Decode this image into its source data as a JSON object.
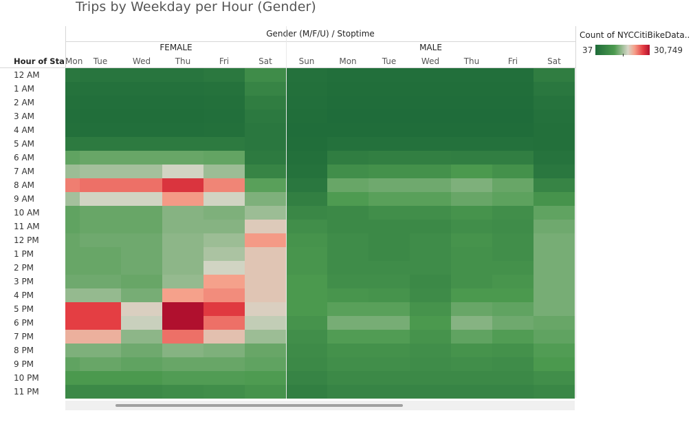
{
  "title": "Trips by Weekday per Hour (Gender)",
  "column_field_label": "Gender (M/F/U) / Stoptime",
  "row_header": "Hour of Sta..",
  "legend": {
    "title": "Count of NYCCitiBikeData..",
    "min": "37",
    "max": "30,749",
    "colors": [
      "#1e6b39",
      "#4c9a4f",
      "#d6d6c8",
      "#f5a08a",
      "#e43c42",
      "#b0102e"
    ]
  },
  "chart_data": {
    "type": "heatmap",
    "title": "Trips by Weekday per Hour (Gender)",
    "xlabel": "Gender (M/F/U) / Stoptime",
    "ylabel": "Hour of Sta..",
    "color_range": [
      37,
      30749
    ],
    "groups": [
      {
        "name": "FEMALE",
        "days": [
          "Mon",
          "Tue",
          "Wed",
          "Thu",
          "Fri",
          "Sat"
        ]
      },
      {
        "name": "MALE",
        "days": [
          "Sun",
          "Mon",
          "Tue",
          "Wed",
          "Thu",
          "Fri",
          "Sat"
        ]
      }
    ],
    "hours": [
      "12 AM",
      "1 AM",
      "2 AM",
      "3 AM",
      "4 AM",
      "5 AM",
      "6 AM",
      "7 AM",
      "8 AM",
      "9 AM",
      "10 AM",
      "11 AM",
      "12 PM",
      "1 PM",
      "2 PM",
      "3 PM",
      "4 PM",
      "5 PM",
      "6 PM",
      "7 PM",
      "8 PM",
      "9 PM",
      "10 PM",
      "11 PM"
    ],
    "values": [
      [
        1200,
        1000,
        1000,
        1000,
        1300,
        3300,
        600,
        400,
        400,
        400,
        400,
        400,
        1800
      ],
      [
        700,
        600,
        600,
        600,
        700,
        2500,
        500,
        300,
        300,
        300,
        300,
        300,
        1200
      ],
      [
        500,
        400,
        400,
        400,
        500,
        1800,
        400,
        200,
        200,
        200,
        200,
        200,
        800
      ],
      [
        400,
        300,
        300,
        300,
        400,
        1400,
        300,
        150,
        150,
        150,
        150,
        150,
        600
      ],
      [
        500,
        400,
        400,
        400,
        500,
        1200,
        250,
        200,
        200,
        200,
        200,
        200,
        500
      ],
      [
        1500,
        1500,
        1500,
        1500,
        1500,
        1200,
        300,
        600,
        600,
        600,
        600,
        600,
        500
      ],
      [
        6000,
        6500,
        6500,
        6500,
        6200,
        1500,
        500,
        1800,
        2000,
        2000,
        1900,
        1900,
        800
      ],
      [
        10000,
        10500,
        10500,
        13500,
        10000,
        2500,
        700,
        3500,
        3800,
        3800,
        4500,
        3800,
        1200
      ],
      [
        21500,
        22500,
        22500,
        27000,
        21000,
        5500,
        1200,
        6500,
        7000,
        7000,
        8000,
        6500,
        2500
      ],
      [
        10500,
        13500,
        13500,
        19500,
        13500,
        8000,
        2000,
        4800,
        5500,
        5500,
        6500,
        5800,
        4000
      ],
      [
        6000,
        6500,
        6500,
        8500,
        8000,
        10000,
        2800,
        3000,
        3500,
        3500,
        4000,
        3500,
        6000
      ],
      [
        6000,
        6500,
        6500,
        8500,
        8500,
        15000,
        3500,
        3000,
        3000,
        3000,
        3500,
        3300,
        7000
      ],
      [
        6500,
        7000,
        7000,
        9000,
        10000,
        19500,
        4000,
        3300,
        3000,
        3300,
        4000,
        3500,
        7500
      ],
      [
        6500,
        6500,
        7000,
        9000,
        11000,
        15500,
        4200,
        3300,
        3000,
        3300,
        3800,
        3500,
        7500
      ],
      [
        6500,
        6500,
        7000,
        9000,
        13500,
        15500,
        4200,
        3300,
        3300,
        3300,
        3800,
        3800,
        7500
      ],
      [
        7000,
        7000,
        6500,
        9500,
        19000,
        15500,
        4500,
        3500,
        3500,
        3000,
        3800,
        4200,
        7500
      ],
      [
        9500,
        9500,
        7500,
        19000,
        20500,
        15500,
        4500,
        4200,
        4000,
        3200,
        4500,
        4500,
        7500
      ],
      [
        26000,
        26000,
        14500,
        30749,
        26500,
        14500,
        4500,
        5500,
        5500,
        4000,
        6500,
        6000,
        7500
      ],
      [
        26000,
        26000,
        13000,
        30749,
        22500,
        12500,
        4000,
        7500,
        7500,
        4500,
        8500,
        7000,
        6500
      ],
      [
        17500,
        17500,
        9000,
        22500,
        16000,
        10000,
        3500,
        5000,
        5000,
        4000,
        6000,
        5000,
        6000
      ],
      [
        8000,
        8000,
        7000,
        8500,
        8000,
        6500,
        3200,
        3800,
        3800,
        3500,
        4000,
        3800,
        5000
      ],
      [
        6000,
        6500,
        6000,
        6500,
        6500,
        6000,
        3000,
        3500,
        3500,
        3300,
        3500,
        3300,
        4500
      ],
      [
        4500,
        4500,
        4500,
        5000,
        5000,
        4800,
        2500,
        3000,
        3000,
        3000,
        3000,
        3000,
        3500
      ],
      [
        3000,
        3000,
        3000,
        3300,
        3500,
        4000,
        2000,
        2500,
        2500,
        2500,
        2500,
        2500,
        2800
      ]
    ]
  }
}
